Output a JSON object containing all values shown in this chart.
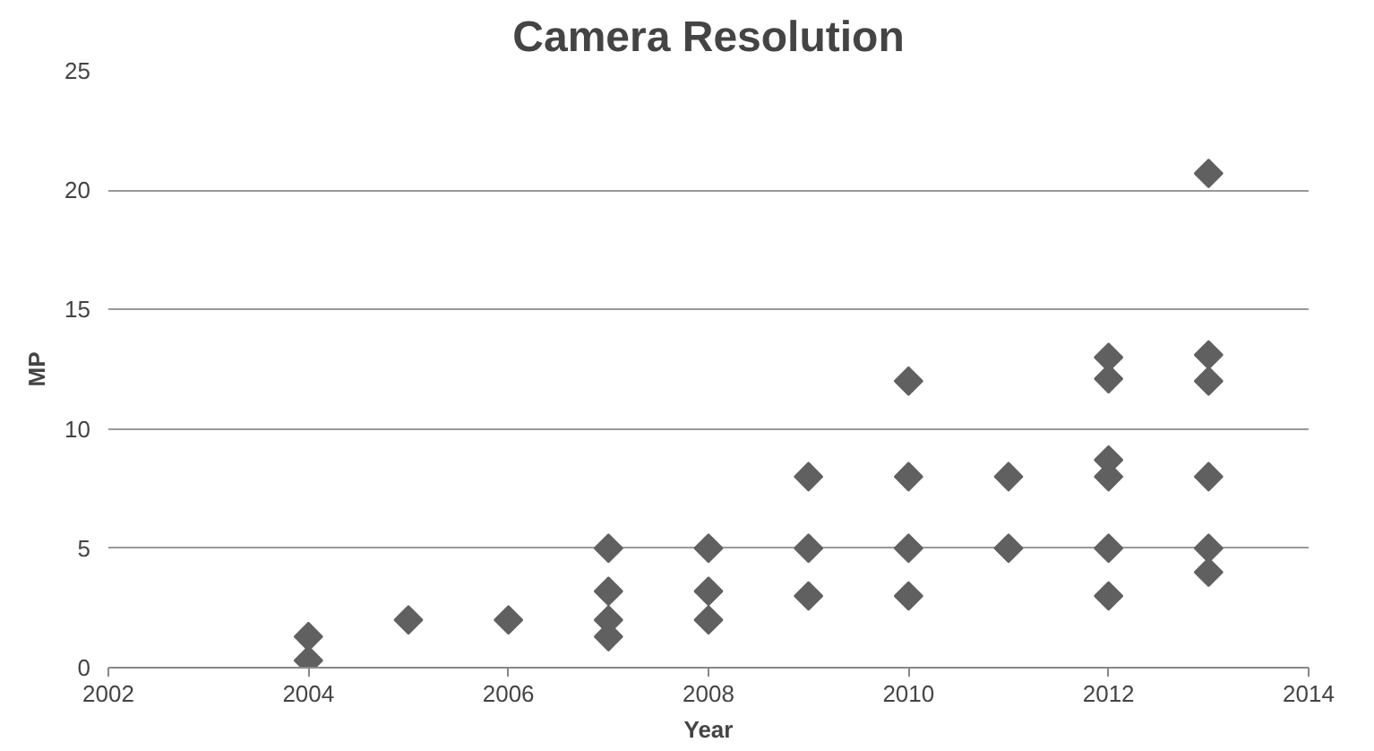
{
  "chart_data": {
    "type": "scatter",
    "title": "Camera Resolution",
    "xlabel": "Year",
    "ylabel": "MP",
    "x": [
      2004,
      2004,
      2005,
      2006,
      2007,
      2007,
      2007,
      2007,
      2008,
      2008,
      2008,
      2009,
      2009,
      2009,
      2010,
      2010,
      2010,
      2010,
      2011,
      2011,
      2012,
      2012,
      2012,
      2012,
      2012,
      2012,
      2013,
      2013,
      2013,
      2013,
      2013,
      2013
    ],
    "series": [
      {
        "color": "#606060",
        "values": [
          1.3,
          0.3,
          2,
          2,
          5,
          3.2,
          2,
          1.3,
          5,
          3.2,
          2,
          8,
          5,
          3,
          12,
          8,
          5,
          3,
          8,
          5,
          13,
          12.1,
          8.7,
          8,
          5,
          3,
          20.7,
          13.1,
          12,
          8,
          5,
          4
        ]
      }
    ],
    "xlim": [
      2002,
      2014
    ],
    "xticks": [
      2002,
      2004,
      2006,
      2008,
      2010,
      2012,
      2014
    ],
    "ylim": [
      0,
      25
    ],
    "yticks": [
      0,
      5,
      10,
      15,
      20,
      25
    ],
    "grid": "y",
    "marker": "diamond"
  }
}
